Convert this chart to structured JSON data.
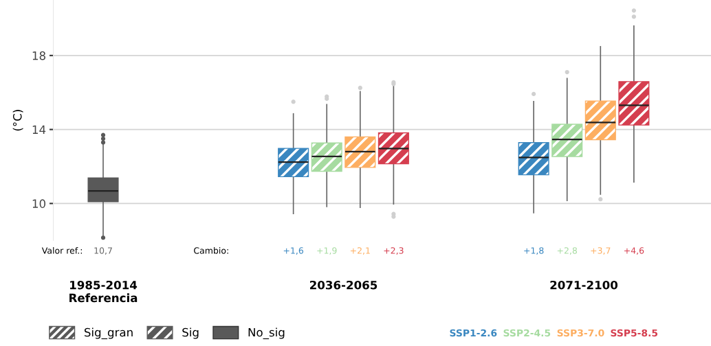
{
  "chart_data": {
    "type": "box",
    "ylabel": "(°C)",
    "categories": [
      "1985-2014\nReferencia",
      "2036-2065",
      "2071-2100"
    ],
    "ylim": [
      8.0,
      21.0
    ],
    "yticks": [
      10,
      14,
      18
    ],
    "grid": "y",
    "legend": "bottom",
    "annotations": [
      "Valor ref.:",
      "Cambio:"
    ],
    "series": [
      {
        "name": "Sig_gran",
        "color": "#595959",
        "boxes": [
          null,
          null,
          null
        ]
      },
      {
        "name": "Sig",
        "color": "#595959",
        "boxes": [
          null,
          null,
          null
        ]
      },
      {
        "name": "No_sig",
        "color": "#595959",
        "value_labels": [
          "10,7",
          null,
          null
        ],
        "boxes": [
          {
            "low": 8.3,
            "q1": 10.1,
            "median": 10.68,
            "q3": 11.38,
            "high": 13.2,
            "outliers": [
              13.3,
              13.5,
              13.7,
              8.15
            ]
          },
          null,
          null
        ]
      },
      {
        "name": "SSP1-2.6",
        "color": "#3a87c0",
        "value_labels": [
          null,
          "+1,6",
          "+1,8"
        ],
        "boxes": [
          null,
          {
            "low": 9.45,
            "q1": 11.45,
            "median": 12.24,
            "q3": 12.98,
            "high": 14.85,
            "outliers": [
              15.5
            ]
          },
          {
            "low": 9.5,
            "q1": 11.55,
            "median": 12.49,
            "q3": 13.29,
            "high": 15.51,
            "outliers": [
              15.92
            ]
          }
        ]
      },
      {
        "name": "SSP2-4.5",
        "color": "#a6dba0",
        "value_labels": [
          null,
          "+1,9",
          "+2,8"
        ],
        "boxes": [
          null,
          {
            "low": 9.83,
            "q1": 11.74,
            "median": 12.54,
            "q3": 13.27,
            "high": 15.35,
            "outliers": [
              15.66,
              15.78
            ]
          },
          {
            "low": 10.16,
            "q1": 12.54,
            "median": 13.46,
            "q3": 14.28,
            "high": 16.76,
            "outliers": [
              17.1
            ]
          }
        ]
      },
      {
        "name": "SSP3-7.0",
        "color": "#fdae61",
        "value_labels": [
          null,
          "+2,1",
          "+3,7"
        ],
        "boxes": [
          null,
          {
            "low": 9.79,
            "q1": 11.95,
            "median": 12.8,
            "q3": 13.6,
            "high": 16.05,
            "outliers": [
              16.25
            ]
          },
          {
            "low": 10.5,
            "q1": 13.45,
            "median": 14.38,
            "q3": 15.54,
            "high": 18.48,
            "outliers": [
              10.23
            ]
          }
        ]
      },
      {
        "name": "SSP5-8.5",
        "color": "#d53e4f",
        "value_labels": [
          null,
          "+2,3",
          "+4,6"
        ],
        "boxes": [
          null,
          {
            "low": 9.97,
            "q1": 12.15,
            "median": 12.97,
            "q3": 13.82,
            "high": 16.34,
            "outliers": [
              16.46,
              16.55,
              9.43,
              9.29
            ]
          },
          {
            "low": 11.16,
            "q1": 14.24,
            "median": 15.31,
            "q3": 16.59,
            "high": 19.6,
            "outliers": [
              20.1,
              20.43
            ]
          }
        ]
      }
    ]
  }
}
